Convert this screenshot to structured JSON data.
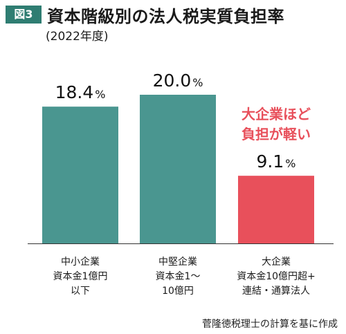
{
  "figure_label": "図3",
  "chart_data": {
    "type": "bar",
    "title": "資本階級別の法人税実質負担率",
    "subtitle": "(2022年度)",
    "categories": [
      [
        "中小企業",
        "資本金1億円",
        "以下"
      ],
      [
        "中堅企業",
        "資本金1～",
        "10億円"
      ],
      [
        "大企業",
        "資本金10億円超+",
        "連結・通算法人"
      ]
    ],
    "values": [
      18.4,
      20.0,
      9.1
    ],
    "value_labels": [
      "18.4",
      "20.0",
      "9.1"
    ],
    "unit": "%",
    "ylim": [
      0,
      23
    ],
    "colors": [
      "#4a9690",
      "#4a9690",
      "#e8505b"
    ],
    "annotation": [
      "大企業ほど",
      "負担が軽い"
    ],
    "annotation_color": "#e8505b"
  },
  "credit": "菅隆徳税理士の計算を基に作成"
}
